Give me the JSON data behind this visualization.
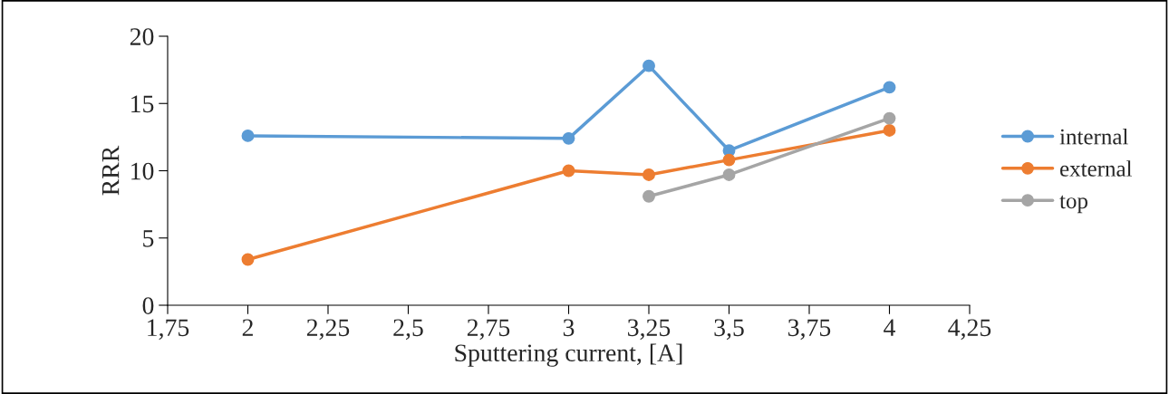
{
  "chart_data": {
    "type": "line",
    "xlabel": "Sputtering current, [A]",
    "ylabel": "RRR",
    "series": [
      {
        "name": "internal",
        "color": "#5b9bd5",
        "x": [
          2,
          3,
          3.25,
          3.5,
          4
        ],
        "values": [
          12.6,
          12.4,
          17.8,
          11.5,
          16.2
        ]
      },
      {
        "name": "external",
        "color": "#ed7d31",
        "x": [
          2,
          3,
          3.25,
          3.5,
          4
        ],
        "values": [
          3.4,
          10.0,
          9.7,
          10.8,
          13.0
        ]
      },
      {
        "name": "top",
        "color": "#a5a5a5",
        "x": [
          3.25,
          3.5,
          4
        ],
        "values": [
          8.1,
          9.7,
          13.9
        ]
      }
    ],
    "xlim": [
      1.75,
      4.25
    ],
    "xticks": [
      {
        "value": 1.75,
        "label": "1,75"
      },
      2,
      {
        "value": 2.25,
        "label": "2,25"
      },
      {
        "value": 2.5,
        "label": "2,5"
      },
      {
        "value": 2.75,
        "label": "2,75"
      },
      3,
      {
        "value": 3.25,
        "label": "3,25"
      },
      {
        "value": 3.5,
        "label": "3,5"
      },
      {
        "value": 3.75,
        "label": "3,75"
      },
      4,
      {
        "value": 4.25,
        "label": "4,25"
      }
    ],
    "ylim": [
      0,
      20
    ],
    "yticks": [
      0,
      5,
      10,
      15,
      20
    ],
    "grid": false,
    "legend": "right",
    "marker": "circle",
    "line_style": "solid"
  }
}
